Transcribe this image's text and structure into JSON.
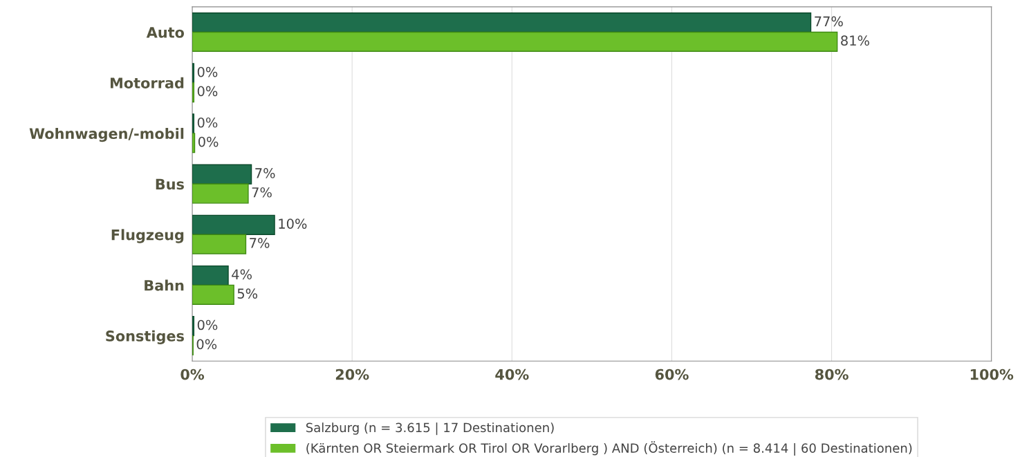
{
  "chart_data": {
    "type": "bar",
    "orientation": "horizontal",
    "categories": [
      "Auto",
      "Motorrad",
      "Wohnwagen/-mobil",
      "Bus",
      "Flugzeug",
      "Bahn",
      "Sonstiges"
    ],
    "series": [
      {
        "name": "Salzburg (n = 3.615 | 17 Destinationen)",
        "color": "#1e6e4c",
        "values": [
          77.4,
          0.2,
          0.2,
          7.4,
          10.3,
          4.5,
          0.2
        ],
        "value_labels": [
          "77%",
          "0%",
          "0%",
          "7%",
          "10%",
          "4%",
          "0%"
        ]
      },
      {
        "name": "(Kärnten OR Steiermark OR Tirol OR Vorarlberg ) AND (Österreich) (n = 8.414 | 60 Destinationen)",
        "color": "#6cbf2a",
        "values": [
          80.7,
          0.2,
          0.3,
          7.0,
          6.7,
          5.2,
          0.1
        ],
        "value_labels": [
          "81%",
          "0%",
          "0%",
          "7%",
          "7%",
          "5%",
          "0%"
        ]
      }
    ],
    "xlim": [
      0,
      100
    ],
    "xticks": [
      {
        "value": 0,
        "label": "0%"
      },
      {
        "value": 20,
        "label": "20%"
      },
      {
        "value": 40,
        "label": "40%"
      },
      {
        "value": 60,
        "label": "60%"
      },
      {
        "value": 80,
        "label": "80%"
      },
      {
        "value": 100,
        "label": "100%"
      }
    ],
    "grid": "x",
    "legend": "bottom"
  }
}
